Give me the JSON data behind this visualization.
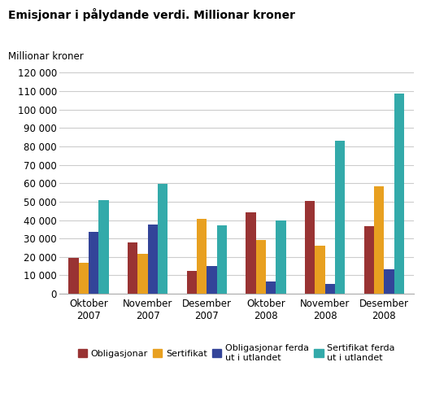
{
  "title": "Emisjonar i pålydande verdi. Millionar kroner",
  "ylabel": "Millionar kroner",
  "categories": [
    "Oktober\n2007",
    "November\n2007",
    "Desember\n2007",
    "Oktober\n2008",
    "November\n2008",
    "Desember\n2008"
  ],
  "series": {
    "Obligasjonar": [
      19500,
      28000,
      12500,
      44000,
      50500,
      36500
    ],
    "Sertifikat": [
      17000,
      21500,
      40500,
      29000,
      26000,
      58500
    ],
    "Obligasjonar ferda\nut i utlandet": [
      33500,
      37500,
      15000,
      6500,
      5500,
      13500
    ],
    "Sertifikat ferda\nut i utlandet": [
      51000,
      59500,
      37000,
      40000,
      83000,
      108500
    ]
  },
  "colors": {
    "Obligasjonar": "#993333",
    "Sertifikat": "#E8A020",
    "Obligasjonar ferda\nut i utlandet": "#334499",
    "Sertifikat ferda\nut i utlandet": "#33AAAA"
  },
  "legend_labels": [
    "Obligasjonar",
    "Sertifikat",
    "Obligasjonar ferda\nut i utlandet",
    "Sertifikat ferda\nut i utlandet"
  ],
  "ylim": [
    0,
    125000
  ],
  "yticks": [
    0,
    10000,
    20000,
    30000,
    40000,
    50000,
    60000,
    70000,
    80000,
    90000,
    100000,
    110000,
    120000
  ],
  "background_color": "#ffffff",
  "grid_color": "#cccccc",
  "title_fontsize": 10,
  "label_fontsize": 8.5,
  "tick_fontsize": 8.5,
  "legend_fontsize": 8
}
